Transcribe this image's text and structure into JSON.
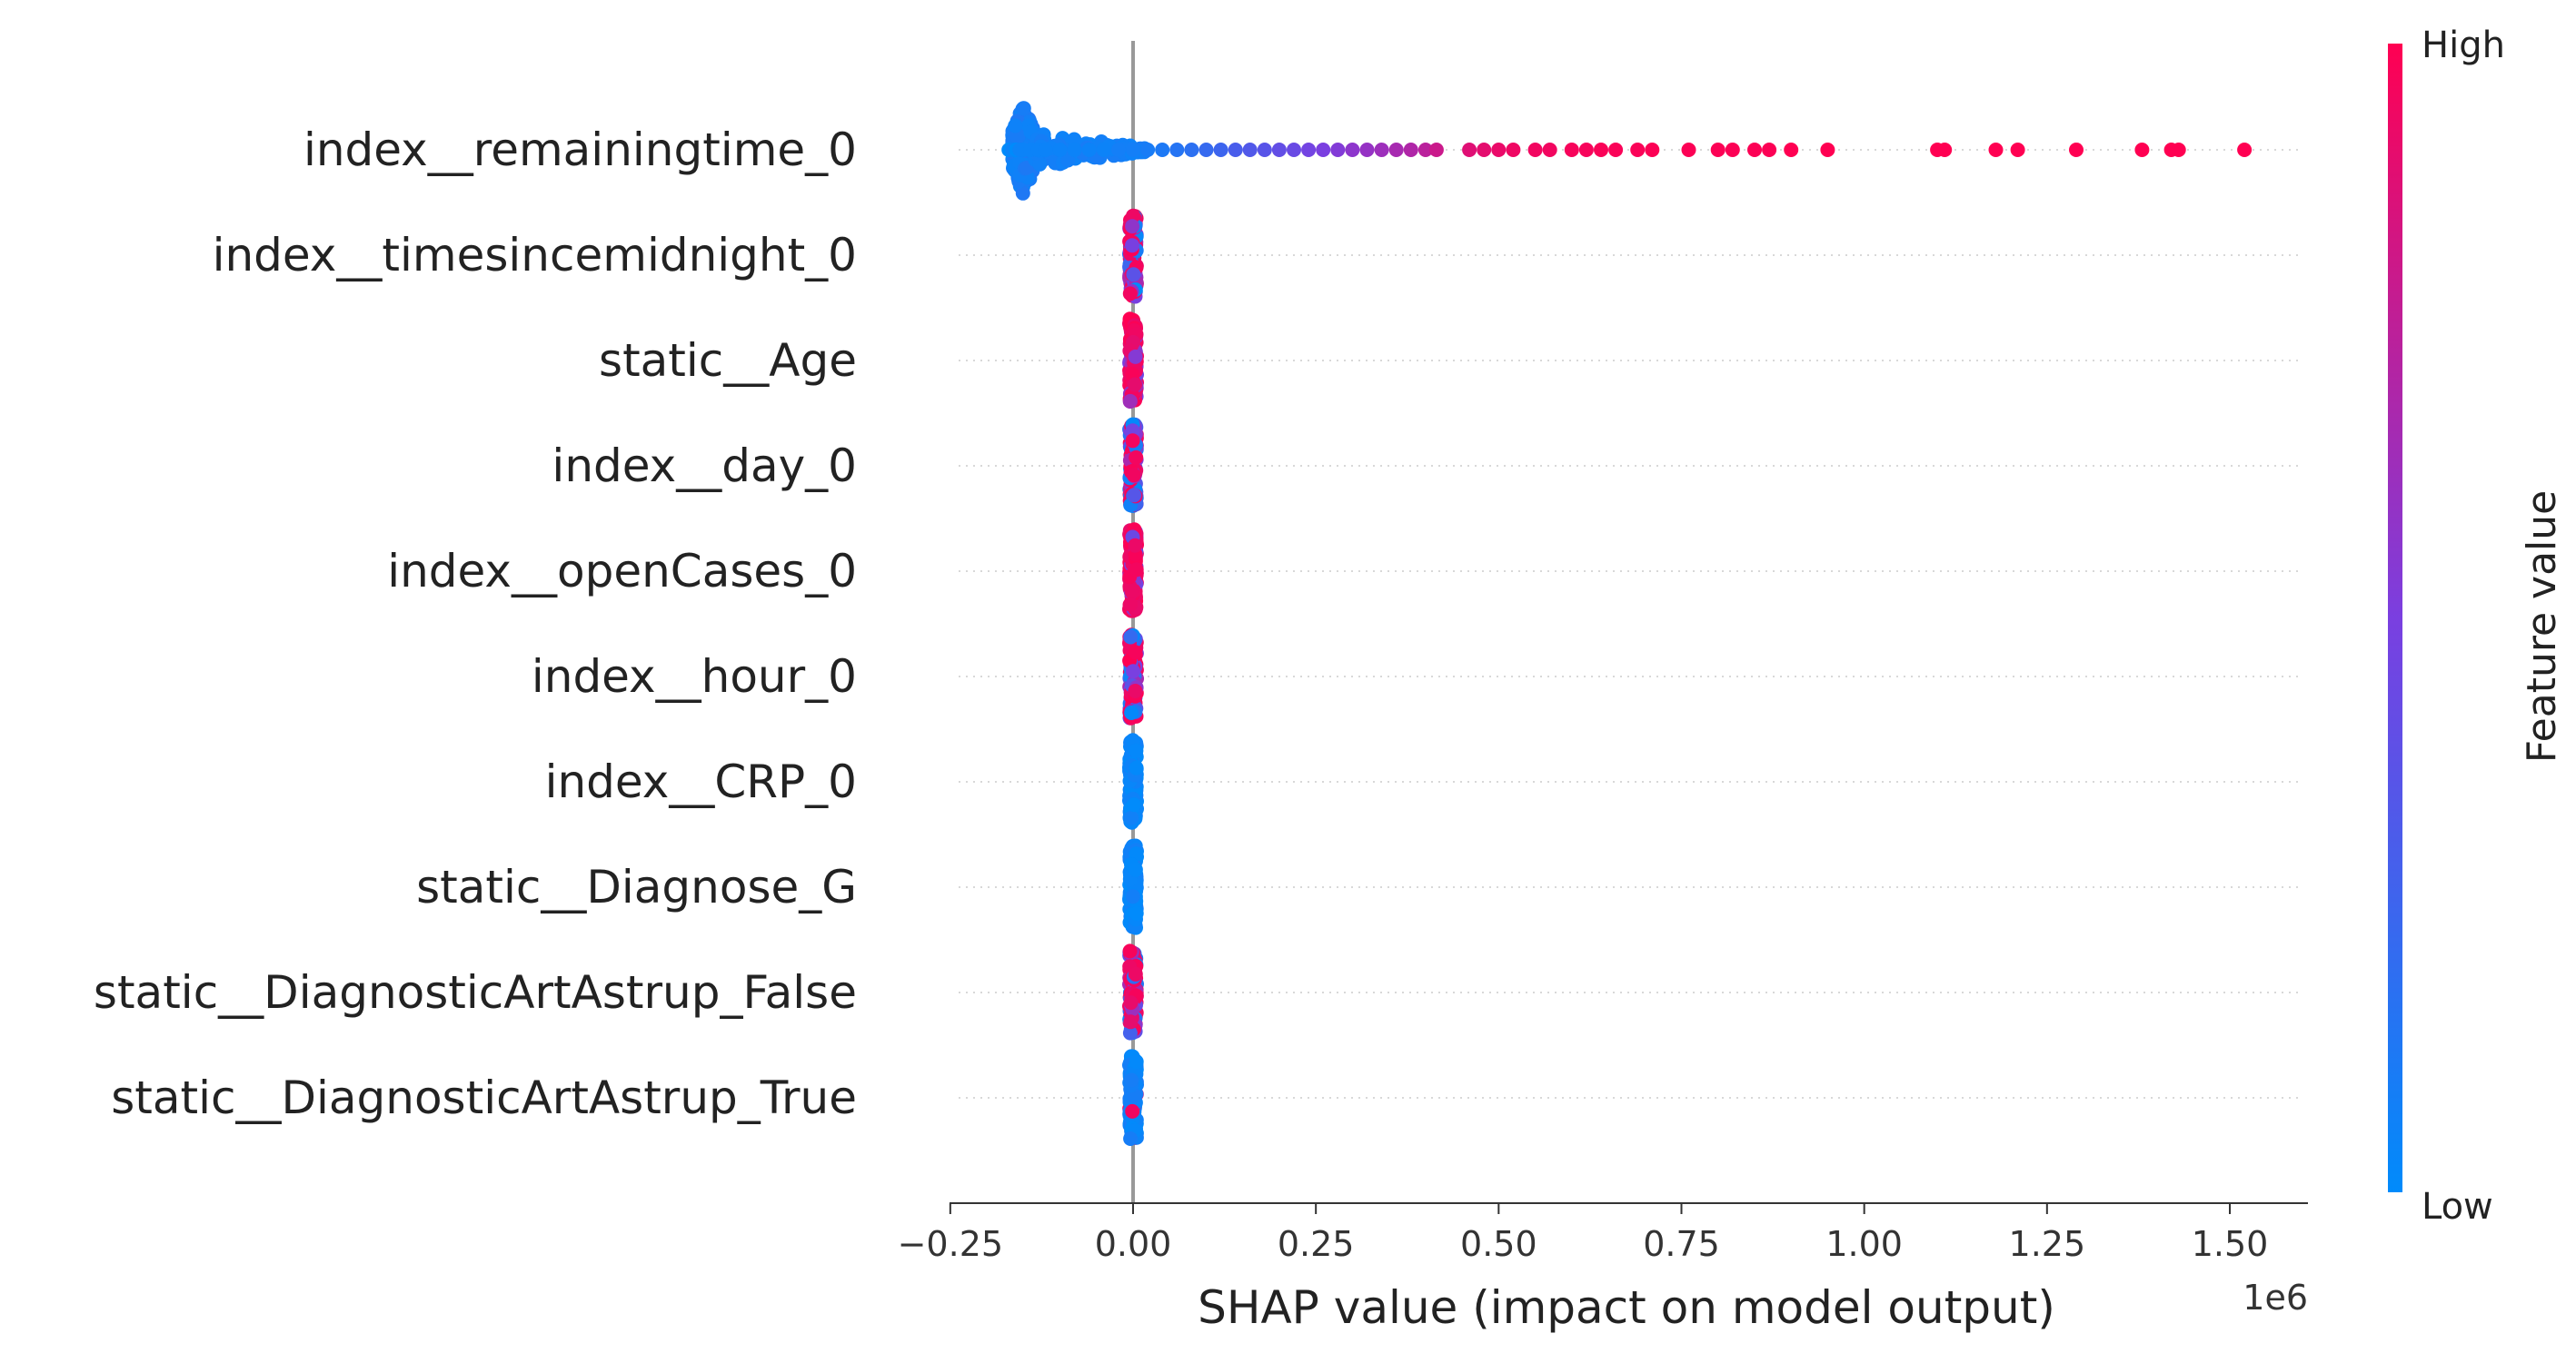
{
  "chart_data": {
    "type": "scatter",
    "xlabel": "SHAP value (impact on model output)",
    "x_offset_label": "1e6",
    "xlim": [
      -0.25,
      1.6
    ],
    "x_ticks": [
      -0.25,
      0.0,
      0.25,
      0.5,
      0.75,
      1.0,
      1.25,
      1.5
    ],
    "x_tick_labels": [
      "−0.25",
      "0.00",
      "0.25",
      "0.50",
      "0.75",
      "1.00",
      "1.25",
      "1.50"
    ],
    "x_multiplier": 1000000,
    "features": [
      "index__remainingtime_0",
      "index__timesincemidnight_0",
      "static__Age",
      "index__day_0",
      "index__openCases_0",
      "index__hour_0",
      "index__CRP_0",
      "static__Diagnose_G",
      "static__DiagnosticArtAstrup_False",
      "static__DiagnosticArtAstrup_True"
    ],
    "colorbar": {
      "label": "Feature value",
      "high_label": "High",
      "low_label": "Low",
      "low_color": "#008bfb",
      "mid_color": "#7a3fe0",
      "high_color": "#ff0052"
    },
    "grid": "dotted horizontal lines per feature",
    "series": [
      {
        "feature": "index__remainingtime_0",
        "points": [
          [
            -0.17,
            0.0
          ],
          [
            -0.165,
            0.05
          ],
          [
            -0.16,
            0.0
          ],
          [
            -0.155,
            0.05
          ],
          [
            -0.15,
            0.05
          ],
          [
            -0.14,
            0.05
          ],
          [
            -0.13,
            0.05
          ],
          [
            -0.12,
            0.05
          ],
          [
            -0.1,
            0.05
          ],
          [
            -0.08,
            0.05
          ],
          [
            -0.06,
            0.05
          ],
          [
            -0.04,
            0.05
          ],
          [
            -0.02,
            0.08
          ],
          [
            0.0,
            0.08
          ],
          [
            0.02,
            0.1
          ],
          [
            0.04,
            0.12
          ],
          [
            0.06,
            0.15
          ],
          [
            0.08,
            0.18
          ],
          [
            0.1,
            0.22
          ],
          [
            0.12,
            0.25
          ],
          [
            0.14,
            0.3
          ],
          [
            0.16,
            0.33
          ],
          [
            0.18,
            0.36
          ],
          [
            0.2,
            0.4
          ],
          [
            0.22,
            0.43
          ],
          [
            0.24,
            0.47
          ],
          [
            0.26,
            0.5
          ],
          [
            0.28,
            0.53
          ],
          [
            0.3,
            0.57
          ],
          [
            0.32,
            0.6
          ],
          [
            0.34,
            0.63
          ],
          [
            0.36,
            0.67
          ],
          [
            0.38,
            0.7
          ],
          [
            0.4,
            0.74
          ],
          [
            0.415,
            0.8
          ],
          [
            0.46,
            0.88
          ],
          [
            0.48,
            0.9
          ],
          [
            0.5,
            0.92
          ],
          [
            0.52,
            0.94
          ],
          [
            0.55,
            0.95
          ],
          [
            0.57,
            0.95
          ],
          [
            0.6,
            0.97
          ],
          [
            0.62,
            0.97
          ],
          [
            0.64,
            0.98
          ],
          [
            0.66,
            0.98
          ],
          [
            0.69,
            0.98
          ],
          [
            0.71,
            0.99
          ],
          [
            0.76,
            0.99
          ],
          [
            0.8,
            0.99
          ],
          [
            0.82,
            0.99
          ],
          [
            0.85,
            0.99
          ],
          [
            0.87,
            0.99
          ],
          [
            0.9,
            1.0
          ],
          [
            0.95,
            1.0
          ],
          [
            1.1,
            1.0
          ],
          [
            1.11,
            1.0
          ],
          [
            1.18,
            1.0
          ],
          [
            1.21,
            1.0
          ],
          [
            1.29,
            1.0
          ],
          [
            1.38,
            1.0
          ],
          [
            1.42,
            1.0
          ],
          [
            1.43,
            1.0
          ],
          [
            1.52,
            1.0
          ]
        ],
        "core_cluster": {
          "x": -0.15,
          "spread": 0.065,
          "color_value": 0.05
        }
      },
      {
        "feature": "index__timesincemidnight_0",
        "center": 0.0,
        "spread": 0.055,
        "color_mix": "mixed"
      },
      {
        "feature": "static__Age",
        "center": 0.0,
        "spread": 0.05,
        "color_mix": "mostly_high"
      },
      {
        "feature": "index__day_0",
        "center": 0.0,
        "spread": 0.05,
        "color_mix": "mixed"
      },
      {
        "feature": "index__openCases_0",
        "center": 0.0,
        "spread": 0.05,
        "color_mix": "mostly_high"
      },
      {
        "feature": "index__hour_0",
        "center": 0.0,
        "spread": 0.05,
        "color_mix": "mixed"
      },
      {
        "feature": "index__CRP_0",
        "center": 0.0,
        "spread": 0.045,
        "color_mix": "low"
      },
      {
        "feature": "static__Diagnose_G",
        "center": 0.0,
        "spread": 0.045,
        "color_mix": "low"
      },
      {
        "feature": "static__DiagnosticArtAstrup_False",
        "center": 0.0,
        "spread": 0.05,
        "color_mix": "mixed"
      },
      {
        "feature": "static__DiagnosticArtAstrup_True",
        "center": 0.0,
        "spread": 0.045,
        "color_mix": "mostly_low"
      }
    ]
  }
}
